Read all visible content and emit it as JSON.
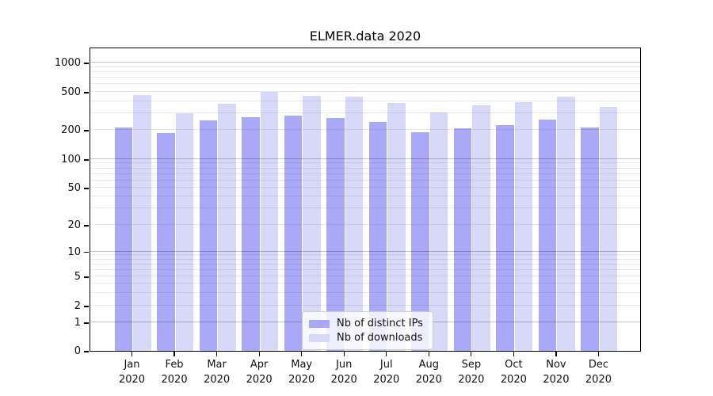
{
  "chart_data": {
    "type": "bar",
    "title": "ELMER.data 2020",
    "categories": [
      "Jan",
      "Feb",
      "Mar",
      "Apr",
      "May",
      "Jun",
      "Jul",
      "Aug",
      "Sep",
      "Oct",
      "Nov",
      "Dec"
    ],
    "category_year": "2020",
    "series": [
      {
        "name": "Nb of distinct IPs",
        "color": "#a9a9f8",
        "values": [
          210,
          185,
          250,
          270,
          280,
          265,
          240,
          188,
          207,
          225,
          255,
          213
        ]
      },
      {
        "name": "Nb of downloads",
        "color": "#d8d8f9",
        "values": [
          465,
          300,
          375,
          500,
          455,
          450,
          385,
          305,
          365,
          390,
          450,
          350
        ]
      }
    ],
    "yscale": "symlog",
    "y_ticks": [
      0,
      1,
      2,
      5,
      10,
      20,
      50,
      100,
      200,
      500,
      1000
    ],
    "y_tick_labels": [
      "0",
      "1",
      "2",
      "5",
      "10",
      "20",
      "50",
      "100",
      "200",
      "500",
      "1000"
    ],
    "ylim": [
      0,
      1400
    ],
    "xlabel": "",
    "ylabel": "",
    "grid": "on",
    "grid_over_bars": true,
    "legend_position": "lower-center-inside"
  }
}
